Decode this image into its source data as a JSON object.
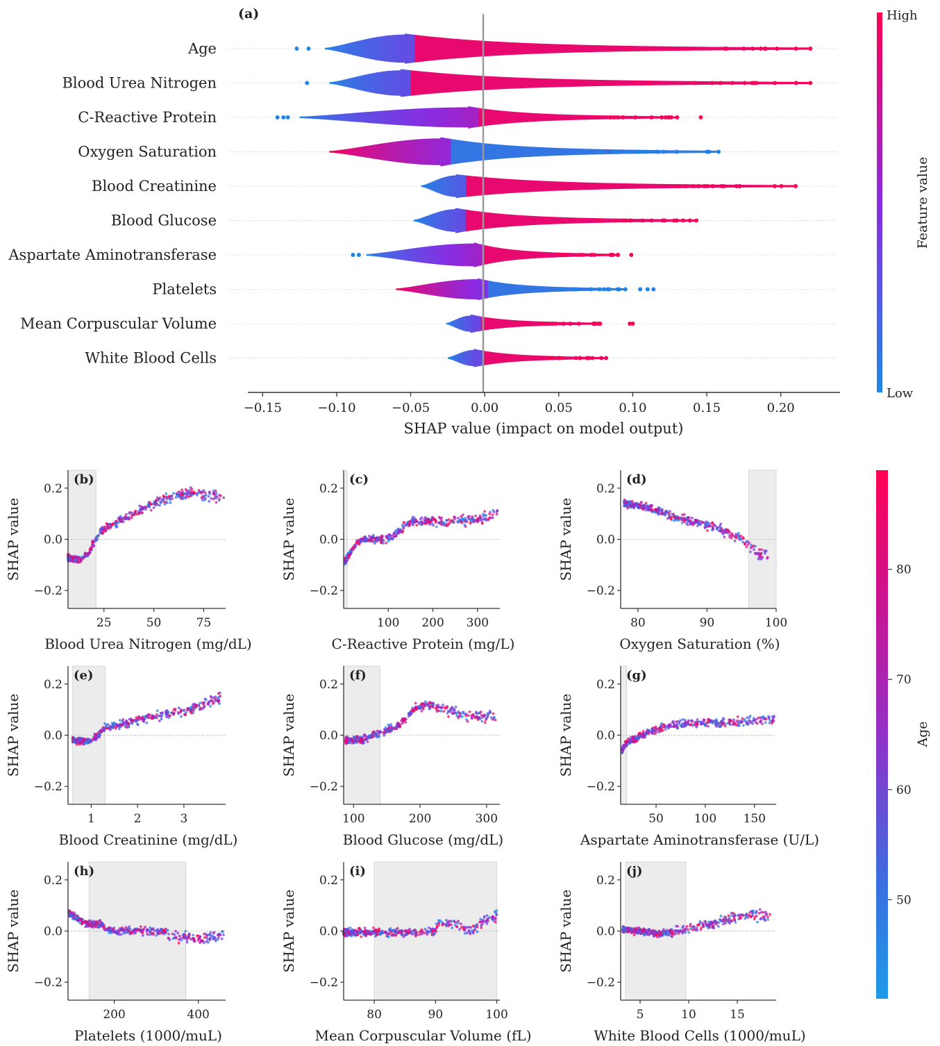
{
  "colors": {
    "low": "#1e88e5",
    "mid": "#8a2be2",
    "high": "#ff0052",
    "band": "#ececec",
    "zero_line": "#999999"
  },
  "chart_data": [
    {
      "id": "a",
      "panel_label": "(a)",
      "type": "scatter",
      "subtype": "shap-beeswarm-violin",
      "xlabel": "SHAP value (impact on model output)",
      "xlim": [
        -0.16,
        0.24
      ],
      "xticks": [
        -0.15,
        -0.1,
        -0.05,
        0.0,
        0.05,
        0.1,
        0.15,
        0.2
      ],
      "colorbar": {
        "label": "Feature value",
        "high_label": "High",
        "low_label": "Low"
      },
      "features": [
        {
          "name": "Age",
          "min": -0.108,
          "max": 0.22,
          "outliers": [
            -0.127,
            -0.119
          ],
          "peak": -0.055,
          "width": 1.0,
          "trend": "low-to-high"
        },
        {
          "name": "Blood Urea Nitrogen",
          "min": -0.105,
          "max": 0.22,
          "outliers": [
            -0.12
          ],
          "peak": -0.057,
          "width": 0.9,
          "trend": "low-to-high"
        },
        {
          "name": "C-Reactive Protein",
          "min": -0.125,
          "max": 0.13,
          "outliers": [
            -0.14,
            -0.136,
            -0.133,
            0.146
          ],
          "peak": -0.012,
          "width": 0.7,
          "trend": "low-to-high"
        },
        {
          "name": "Oxygen Saturation",
          "min": -0.105,
          "max": 0.158,
          "outliers": [],
          "peak": -0.03,
          "width": 0.95,
          "trend": "high-to-low"
        },
        {
          "name": "Blood Creatinine",
          "min": -0.043,
          "max": 0.21,
          "outliers": [],
          "peak": -0.02,
          "width": 0.75,
          "trend": "low-to-high"
        },
        {
          "name": "Blood Glucose",
          "min": -0.048,
          "max": 0.143,
          "outliers": [],
          "peak": -0.02,
          "width": 0.8,
          "trend": "low-to-high"
        },
        {
          "name": "Aspartate Aminotransferase",
          "min": -0.08,
          "max": 0.09,
          "outliers": [
            -0.089,
            -0.085,
            0.099
          ],
          "peak": -0.008,
          "width": 0.8,
          "trend": "low-to-high"
        },
        {
          "name": "Platelets",
          "min": -0.06,
          "max": 0.095,
          "outliers": [
            0.105,
            0.11,
            0.114
          ],
          "peak": -0.006,
          "width": 0.7,
          "trend": "high-to-low"
        },
        {
          "name": "Mean Corpuscular Volume",
          "min": -0.026,
          "max": 0.078,
          "outliers": [
            0.098,
            0.1
          ],
          "peak": -0.01,
          "width": 0.55,
          "trend": "low-to-high"
        },
        {
          "name": "White Blood Cells",
          "min": -0.025,
          "max": 0.082,
          "outliers": [],
          "peak": -0.008,
          "width": 0.55,
          "trend": "low-to-high"
        }
      ]
    },
    {
      "id": "b",
      "panel_label": "(b)",
      "type": "scatter",
      "subtype": "shap-dependence",
      "xlabel": "Blood Urea Nitrogen (mg/dL)",
      "ylabel": "SHAP value",
      "xlim": [
        7,
        86
      ],
      "ylim": [
        -0.27,
        0.27
      ],
      "xticks": [
        25,
        50,
        75
      ],
      "yticks": [
        -0.2,
        0.0,
        0.2
      ],
      "band": [
        7,
        21
      ],
      "curve": [
        [
          7,
          -0.07
        ],
        [
          12,
          -0.08
        ],
        [
          17,
          -0.06
        ],
        [
          20,
          -0.01
        ],
        [
          23,
          0.03
        ],
        [
          30,
          0.06
        ],
        [
          40,
          0.1
        ],
        [
          50,
          0.14
        ],
        [
          60,
          0.17
        ],
        [
          70,
          0.18
        ],
        [
          85,
          0.16
        ]
      ]
    },
    {
      "id": "c",
      "panel_label": "(c)",
      "type": "scatter",
      "subtype": "shap-dependence",
      "xlabel": "C-Reactive Protein (mg/L)",
      "ylabel": "SHAP value",
      "xlim": [
        0,
        350
      ],
      "ylim": [
        -0.27,
        0.27
      ],
      "xticks": [
        100,
        200,
        300
      ],
      "yticks": [
        -0.2,
        0.0,
        0.2
      ],
      "band": [
        0,
        8
      ],
      "curve": [
        [
          2,
          -0.09
        ],
        [
          15,
          -0.05
        ],
        [
          30,
          -0.01
        ],
        [
          50,
          0.0
        ],
        [
          100,
          0.0
        ],
        [
          130,
          0.04
        ],
        [
          150,
          0.07
        ],
        [
          200,
          0.07
        ],
        [
          250,
          0.07
        ],
        [
          300,
          0.08
        ],
        [
          345,
          0.1
        ]
      ]
    },
    {
      "id": "d",
      "panel_label": "(d)",
      "type": "scatter",
      "subtype": "shap-dependence",
      "xlabel": "Oxygen Saturation (%)",
      "ylabel": "SHAP value",
      "xlim": [
        77.5,
        100
      ],
      "ylim": [
        -0.27,
        0.27
      ],
      "xticks": [
        80,
        90,
        100
      ],
      "yticks": [
        -0.2,
        0.0,
        0.2
      ],
      "band": [
        96,
        100
      ],
      "curve": [
        [
          78,
          0.14
        ],
        [
          82,
          0.12
        ],
        [
          85,
          0.09
        ],
        [
          88,
          0.07
        ],
        [
          92,
          0.04
        ],
        [
          95,
          0.0
        ],
        [
          97,
          -0.05
        ],
        [
          99,
          -0.07
        ]
      ]
    },
    {
      "id": "e",
      "panel_label": "(e)",
      "type": "scatter",
      "subtype": "shap-dependence",
      "xlabel": "Blood Creatinine (mg/dL)",
      "ylabel": "SHAP value",
      "xlim": [
        0.5,
        3.9
      ],
      "ylim": [
        -0.27,
        0.27
      ],
      "xticks": [
        1,
        2,
        3
      ],
      "yticks": [
        -0.2,
        0.0,
        0.2
      ],
      "band": [
        0.6,
        1.3
      ],
      "curve": [
        [
          0.6,
          -0.02
        ],
        [
          0.9,
          -0.025
        ],
        [
          1.1,
          -0.01
        ],
        [
          1.3,
          0.03
        ],
        [
          1.6,
          0.04
        ],
        [
          2.0,
          0.06
        ],
        [
          2.5,
          0.08
        ],
        [
          3.0,
          0.09
        ],
        [
          3.8,
          0.15
        ]
      ]
    },
    {
      "id": "f",
      "panel_label": "(f)",
      "type": "scatter",
      "subtype": "shap-dependence",
      "xlabel": "Blood Glucose (mg/dL)",
      "ylabel": "SHAP value",
      "xlim": [
        85,
        320
      ],
      "ylim": [
        -0.27,
        0.27
      ],
      "xticks": [
        100,
        200,
        300
      ],
      "yticks": [
        -0.2,
        0.0,
        0.2
      ],
      "band": [
        85,
        140
      ],
      "curve": [
        [
          88,
          -0.02
        ],
        [
          110,
          -0.02
        ],
        [
          130,
          0.0
        ],
        [
          150,
          0.02
        ],
        [
          170,
          0.04
        ],
        [
          190,
          0.1
        ],
        [
          210,
          0.12
        ],
        [
          240,
          0.1
        ],
        [
          270,
          0.08
        ],
        [
          315,
          0.07
        ]
      ]
    },
    {
      "id": "g",
      "panel_label": "(g)",
      "type": "scatter",
      "subtype": "shap-dependence",
      "xlabel": "Aspartate Aminotransferase (U/L)",
      "ylabel": "SHAP value",
      "xlim": [
        14,
        172
      ],
      "ylim": [
        -0.27,
        0.27
      ],
      "xticks": [
        50,
        100,
        150
      ],
      "yticks": [
        -0.2,
        0.0,
        0.2
      ],
      "band": [
        14,
        20
      ],
      "curve": [
        [
          15,
          -0.06
        ],
        [
          20,
          -0.03
        ],
        [
          35,
          0.0
        ],
        [
          50,
          0.02
        ],
        [
          65,
          0.04
        ],
        [
          90,
          0.05
        ],
        [
          120,
          0.05
        ],
        [
          150,
          0.05
        ],
        [
          170,
          0.07
        ]
      ]
    },
    {
      "id": "h",
      "panel_label": "(h)",
      "type": "scatter",
      "subtype": "shap-dependence",
      "xlabel": "Platelets (1000/muL)",
      "ylabel": "SHAP value",
      "xlim": [
        90,
        465
      ],
      "ylim": [
        -0.27,
        0.27
      ],
      "xticks": [
        200,
        400
      ],
      "yticks": [
        -0.2,
        0.0,
        0.2
      ],
      "band": [
        140,
        370
      ],
      "curve": [
        [
          92,
          0.07
        ],
        [
          110,
          0.05
        ],
        [
          130,
          0.03
        ],
        [
          170,
          0.025
        ],
        [
          190,
          0.0
        ],
        [
          250,
          0.0
        ],
        [
          320,
          0.0
        ],
        [
          330,
          -0.02
        ],
        [
          400,
          -0.03
        ],
        [
          460,
          -0.02
        ]
      ]
    },
    {
      "id": "i",
      "panel_label": "(i)",
      "type": "scatter",
      "subtype": "shap-dependence",
      "xlabel": "Mean Corpuscular Volume (fL)",
      "ylabel": "SHAP value",
      "xlim": [
        75,
        100.5
      ],
      "ylim": [
        -0.27,
        0.27
      ],
      "xticks": [
        80,
        90,
        100
      ],
      "yticks": [
        -0.2,
        0.0,
        0.2
      ],
      "band": [
        80,
        100
      ],
      "curve": [
        [
          75,
          -0.005
        ],
        [
          80,
          -0.005
        ],
        [
          85,
          -0.005
        ],
        [
          89.8,
          -0.003
        ],
        [
          90.5,
          0.03
        ],
        [
          92,
          0.03
        ],
        [
          93.5,
          0.02
        ],
        [
          96,
          -0.002
        ],
        [
          98,
          0.04
        ],
        [
          100,
          0.06
        ]
      ]
    },
    {
      "id": "j",
      "panel_label": "(j)",
      "type": "scatter",
      "subtype": "shap-dependence",
      "xlabel": "White Blood Cells (1000/muL)",
      "ylabel": "SHAP value",
      "xlim": [
        3,
        19
      ],
      "ylim": [
        -0.27,
        0.27
      ],
      "xticks": [
        5,
        10,
        15
      ],
      "yticks": [
        -0.2,
        0.0,
        0.2
      ],
      "band": [
        3.5,
        9.7
      ],
      "curve": [
        [
          3.2,
          0.005
        ],
        [
          5,
          0.0
        ],
        [
          7,
          -0.01
        ],
        [
          9,
          0.0
        ],
        [
          11,
          0.02
        ],
        [
          13,
          0.03
        ],
        [
          14,
          0.05
        ],
        [
          16,
          0.06
        ],
        [
          18.5,
          0.06
        ]
      ]
    },
    {
      "id": "age-colorbar",
      "type": "colorbar",
      "label": "Age",
      "ticks": [
        50,
        60,
        70,
        80
      ],
      "range": [
        41,
        89
      ]
    }
  ]
}
